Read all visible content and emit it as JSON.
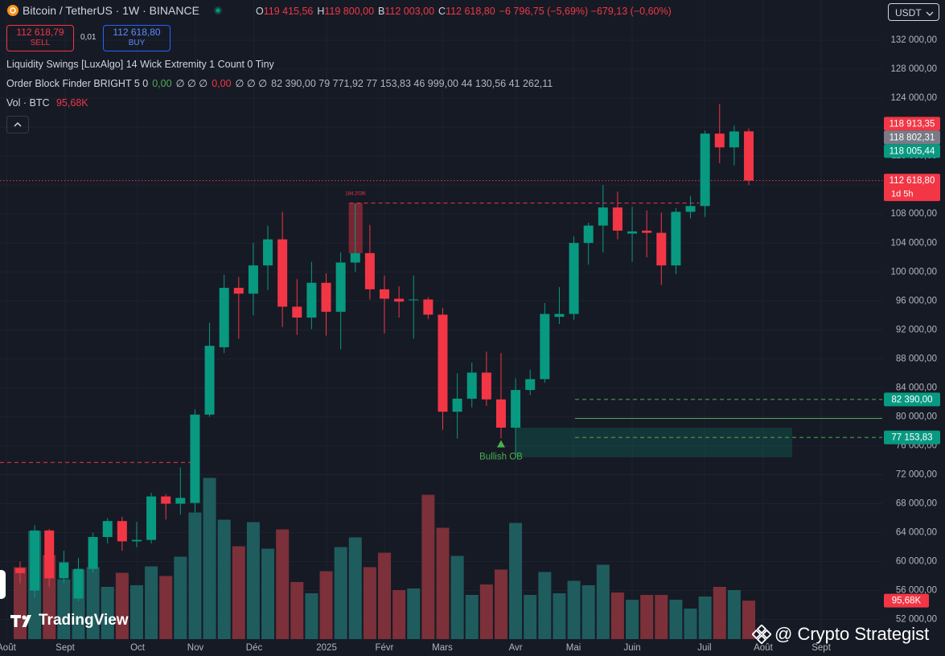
{
  "header": {
    "symbol": "Bitcoin / TetherUS · 1W · BINANCE",
    "ohlc": [
      {
        "key": "O",
        "value": "119 415,56"
      },
      {
        "key": "H",
        "value": "119 800,00"
      },
      {
        "key": "B",
        "value": "112 003,00"
      },
      {
        "key": "C",
        "value": "112 618,80"
      }
    ],
    "change": "−6 796,75 (−5,69%) −679,13 (−0,60%)",
    "sell": {
      "price": "112 618,79",
      "label": "SELL"
    },
    "spread": "0,01",
    "buy": {
      "price": "112 618,80",
      "label": "BUY"
    },
    "currency": "USDT",
    "indicators": [
      [
        {
          "text": "Liquidity Swings [LuxAlgo] 14 Wick Extremity 1 Count 0 Tiny",
          "color": "#d1d4dc"
        }
      ],
      [
        {
          "text": "Order Block Finder BRIGHT 5 0",
          "color": "#d1d4dc"
        },
        {
          "text": "0,00",
          "color": "#4caf50"
        },
        {
          "text": "∅ ∅ ∅",
          "color": "#d1d4dc"
        },
        {
          "text": "0,00",
          "color": "#f23645"
        },
        {
          "text": "∅ ∅ ∅",
          "color": "#d1d4dc"
        },
        {
          "text": "82 390,00  79 771,92  77 153,83  46 999,00  44 130,56  41 262,11",
          "color": "#b2b5be"
        }
      ]
    ],
    "logo": "TradingView",
    "credit": "@ Crypto Strategist"
  },
  "chart_data": {
    "type": "candlestick",
    "up_color": "#089981",
    "down_color": "#f23645",
    "grid": true,
    "xlim": [
      -1.38,
      59.16
    ],
    "xticks": [
      {
        "value": -0.94,
        "label": "Août"
      },
      {
        "value": 3.09,
        "label": "Sept"
      },
      {
        "value": 8.06,
        "label": "Oct"
      },
      {
        "value": 12.03,
        "label": "Nov"
      },
      {
        "value": 16.06,
        "label": "Déc"
      },
      {
        "value": 21.03,
        "label": "2025"
      },
      {
        "value": 25.0,
        "label": "Févr"
      },
      {
        "value": 28.97,
        "label": "Mars"
      },
      {
        "value": 34.0,
        "label": "Avr"
      },
      {
        "value": 37.97,
        "label": "Mai"
      },
      {
        "value": 42.0,
        "label": "Juin"
      },
      {
        "value": 46.96,
        "label": "Juil"
      },
      {
        "value": 50.99,
        "label": "Août"
      },
      {
        "value": 54.97,
        "label": "Sept"
      }
    ],
    "ylim": [
      49300,
      137548
    ],
    "yticks": [
      {
        "value": 52000,
        "label": "52 000,00"
      },
      {
        "value": 56000,
        "label": "56 000,00"
      },
      {
        "value": 60000,
        "label": "60 000,00"
      },
      {
        "value": 64000,
        "label": "64 000,00"
      },
      {
        "value": 68000,
        "label": "68 000,00"
      },
      {
        "value": 72000,
        "label": "72 000,00"
      },
      {
        "value": 76000,
        "label": "76 000,00"
      },
      {
        "value": 80000,
        "label": "80 000,00"
      },
      {
        "value": 84000,
        "label": "84 000,00"
      },
      {
        "value": 88000,
        "label": "88 000,00"
      },
      {
        "value": 92000,
        "label": "92 000,00"
      },
      {
        "value": 96000,
        "label": "96 000,00"
      },
      {
        "value": 100000,
        "label": "100 000,00"
      },
      {
        "value": 104000,
        "label": "104 000,00"
      },
      {
        "value": 108000,
        "label": "108 000,00"
      },
      {
        "value": 112000,
        "label": "112 000,00"
      },
      {
        "value": 116000,
        "label": "116 000,00"
      },
      {
        "value": 120000,
        "label": "120 000,00"
      },
      {
        "value": 124000,
        "label": "124 000,00"
      },
      {
        "value": 128000,
        "label": "128 000,00"
      },
      {
        "value": 132000,
        "label": "132 000,00"
      }
    ],
    "x": [
      0,
      1,
      2,
      3,
      4,
      5,
      6,
      7,
      8,
      9,
      10,
      11,
      12,
      13,
      14,
      15,
      16,
      17,
      18,
      19,
      20,
      21,
      22,
      23,
      24,
      25,
      26,
      27,
      28,
      29,
      30,
      31,
      32,
      33,
      34,
      35,
      36,
      37,
      38,
      39,
      40,
      41,
      42,
      43,
      44,
      45,
      46,
      47,
      48,
      49,
      50
    ],
    "open": [
      59100,
      56000,
      64300,
      57700,
      54900,
      59000,
      63400,
      65600,
      62800,
      63000,
      69000,
      68000,
      68100,
      80300,
      89600,
      97800,
      97000,
      100900,
      104500,
      95200,
      93700,
      98500,
      94500,
      101300,
      102600,
      97600,
      96300,
      96100,
      96200,
      94100,
      80700,
      82500,
      86100,
      82400,
      78500,
      83700,
      85200,
      93800,
      94200,
      104000,
      106400,
      108900,
      105300,
      105700,
      105400,
      100900,
      108300,
      109100,
      119100,
      117200,
      119415.56
    ],
    "high": [
      60000,
      65000,
      64500,
      61500,
      60500,
      64000,
      66000,
      66200,
      65500,
      69500,
      69300,
      73000,
      81000,
      93000,
      99600,
      99300,
      104000,
      106400,
      108300,
      99000,
      101400,
      99800,
      102700,
      109400,
      106500,
      99500,
      98000,
      99500,
      96500,
      95000,
      86000,
      87500,
      89000,
      88800,
      85300,
      86500,
      95700,
      97900,
      104900,
      106800,
      112000,
      111100,
      109000,
      108500,
      108200,
      108800,
      110500,
      119500,
      123200,
      120200,
      119800
    ],
    "low": [
      57000,
      55000,
      56500,
      57000,
      54500,
      58500,
      62500,
      61500,
      62000,
      62500,
      65800,
      66500,
      66800,
      80000,
      88800,
      90800,
      94000,
      97500,
      92400,
      91300,
      92100,
      91200,
      89300,
      100000,
      96200,
      91500,
      93700,
      90800,
      93500,
      78200,
      77000,
      81300,
      81500,
      77000,
      74500,
      83000,
      84700,
      92800,
      93400,
      101000,
      102700,
      104500,
      101400,
      102000,
      98200,
      99700,
      107400,
      107600,
      115000,
      114700,
      112003
    ],
    "close": [
      58400,
      64300,
      57700,
      59900,
      59000,
      63400,
      65600,
      62800,
      63000,
      69000,
      68000,
      68800,
      80300,
      89800,
      97800,
      97000,
      100900,
      104500,
      95200,
      93700,
      98500,
      94500,
      101300,
      102600,
      97600,
      96300,
      95900,
      96200,
      94100,
      80700,
      82500,
      86100,
      82400,
      78500,
      83700,
      85200,
      94200,
      94200,
      104000,
      106400,
      108900,
      105700,
      105600,
      105400,
      100900,
      108300,
      109100,
      119100,
      117200,
      119400,
      112618.8
    ],
    "volume": {
      "name": "Vol · BTC",
      "up_color": "#1f5c5e",
      "down_color": "#7c3039",
      "ylim": [
        0,
        400000
      ],
      "values": [
        179000,
        269000,
        209000,
        149000,
        173000,
        179000,
        130000,
        165000,
        134000,
        181000,
        157000,
        205000,
        315000,
        401000,
        297000,
        231000,
        291000,
        225000,
        273000,
        142000,
        114000,
        169000,
        229000,
        253000,
        179000,
        215000,
        122000,
        126000,
        359000,
        277000,
        207000,
        110000,
        136000,
        173000,
        289000,
        110000,
        167000,
        114000,
        145000,
        134000,
        185000,
        116000,
        98000,
        110000,
        110000,
        98000,
        76000,
        106000,
        130000,
        122000,
        95680
      ],
      "tag": "95,68K",
      "tag_color": "#f23645"
    },
    "zones": [
      {
        "x": [
          22.55,
          23.5
        ],
        "y": [
          102600,
          109500
        ],
        "color": "rgba(242,54,69,0.45)",
        "label": "184.203K"
      },
      {
        "x": [
          34.0,
          52.98
        ],
        "y": [
          74400,
          78500
        ],
        "color": "rgba(8,153,129,0.22)"
      }
    ],
    "levels": [
      {
        "value": 109500,
        "x": [
          22.6,
          46.6
        ],
        "color": "#f23645",
        "style": "dashed"
      },
      {
        "value": 73700,
        "x": [
          -1.38,
          11.75
        ],
        "color": "#f23645",
        "style": "dashed"
      },
      {
        "value": 82390,
        "x": [
          38.08,
          59.16
        ],
        "color": "#4caf50",
        "style": "dashed"
      },
      {
        "value": 79771.92,
        "x": [
          38.08,
          59.16
        ],
        "color": "#4caf50",
        "style": "solid"
      },
      {
        "value": 77153.83,
        "x": [
          38.08,
          59.16
        ],
        "color": "#4caf50",
        "style": "dashed"
      },
      {
        "value": 112618.8,
        "x": [
          -1.38,
          59.16
        ],
        "color": "#f23645",
        "style": "dotted"
      }
    ],
    "annotations": [
      {
        "text": "Bullish OB",
        "x": 33,
        "color": "#4caf50"
      }
    ],
    "price_tags": [
      {
        "value": 118913.35,
        "label": "118 913,35",
        "color": "#f23645"
      },
      {
        "value": 118802.31,
        "label": "118 802,31",
        "color": "#787b86"
      },
      {
        "value": 118005.44,
        "label": "118 005,44",
        "color": "#089981"
      },
      {
        "value": 112618.8,
        "label": "112 618,80",
        "sub": "1d 5h",
        "color": "#f23645"
      },
      {
        "value": 82390,
        "label": "82 390,00",
        "color": "#089981"
      },
      {
        "value": 77153.83,
        "label": "77 153,83",
        "color": "#089981"
      }
    ]
  }
}
